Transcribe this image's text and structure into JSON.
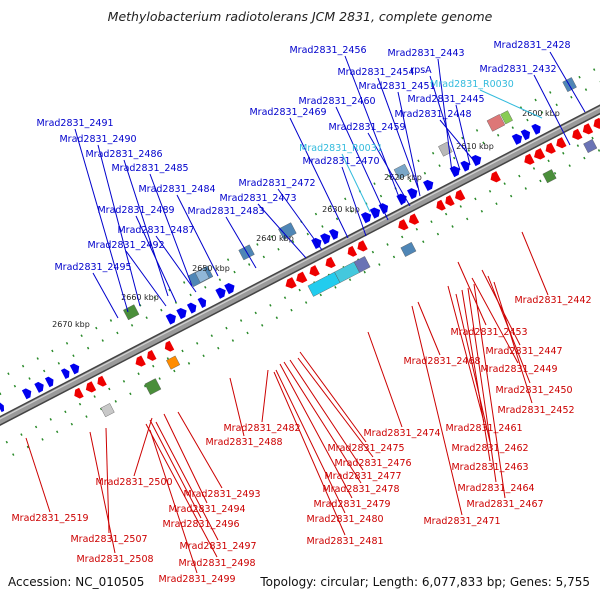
{
  "title": "Methylobacterium radiotolerans JCM 2831, complete genome",
  "accession": "Accession: NC_010505",
  "topology": "Topology: circular; Length: 6,077,833 bp; Genes: 5,755",
  "colors": {
    "forward_label": "#0000cc",
    "reverse_label": "#cc0000",
    "rna_label": "#33bbdd",
    "forward_gene": "#0000ee",
    "reverse_gene": "#ee0000",
    "backbone": "#777777",
    "tick": "#2a8a2a"
  },
  "ticks": [
    "2600 kbp",
    "2610 kbp",
    "2620 kbp",
    "2630 kbp",
    "2640 kbp",
    "2650 kbp",
    "2660 kbp",
    "2670 kbp"
  ],
  "forward_labels": [
    "Mrad2831_2456",
    "Mrad2831_2443",
    "Mrad2831_2428",
    "Mrad2831_2454",
    "rpsA",
    "Mrad2831_2432",
    "Mrad2831_2451",
    "Mrad2831_2460",
    "Mrad2831_2445",
    "Mrad2831_2469",
    "Mrad2831_2448",
    "Mrad2831_2459",
    "Mrad2831_2491",
    "Mrad2831_2490",
    "Mrad2831_2486",
    "Mrad2831_2470",
    "Mrad2831_2485",
    "Mrad2831_2472",
    "Mrad2831_2484",
    "Mrad2831_2473",
    "Mrad2831_2489",
    "Mrad2831_2483",
    "Mrad2831_2487",
    "Mrad2831_2492",
    "Mrad2831_2495"
  ],
  "rna_labels": [
    "Mrad2831_R0030",
    "Mrad2831_R0031"
  ],
  "reverse_labels": [
    "Mrad2831_2442",
    "Mrad2831_2453",
    "Mrad2831_2447",
    "Mrad2831_2468",
    "Mrad2831_2449",
    "Mrad2831_2450",
    "Mrad2831_2452",
    "Mrad2831_2482",
    "Mrad2831_2474",
    "Mrad2831_2461",
    "Mrad2831_2488",
    "Mrad2831_2475",
    "Mrad2831_2462",
    "Mrad2831_2476",
    "Mrad2831_2463",
    "Mrad2831_2477",
    "Mrad2831_2500",
    "Mrad2831_2478",
    "Mrad2831_2464",
    "Mrad2831_2493",
    "Mrad2831_2479",
    "Mrad2831_2467",
    "Mrad2831_2494",
    "Mrad2831_2480",
    "Mrad2831_2471",
    "Mrad2831_2519",
    "Mrad2831_2496",
    "Mrad2831_2507",
    "Mrad2831_2481",
    "Mrad2831_2497",
    "Mrad2831_2508",
    "Mrad2831_2498",
    "Mrad2831_2499"
  ]
}
